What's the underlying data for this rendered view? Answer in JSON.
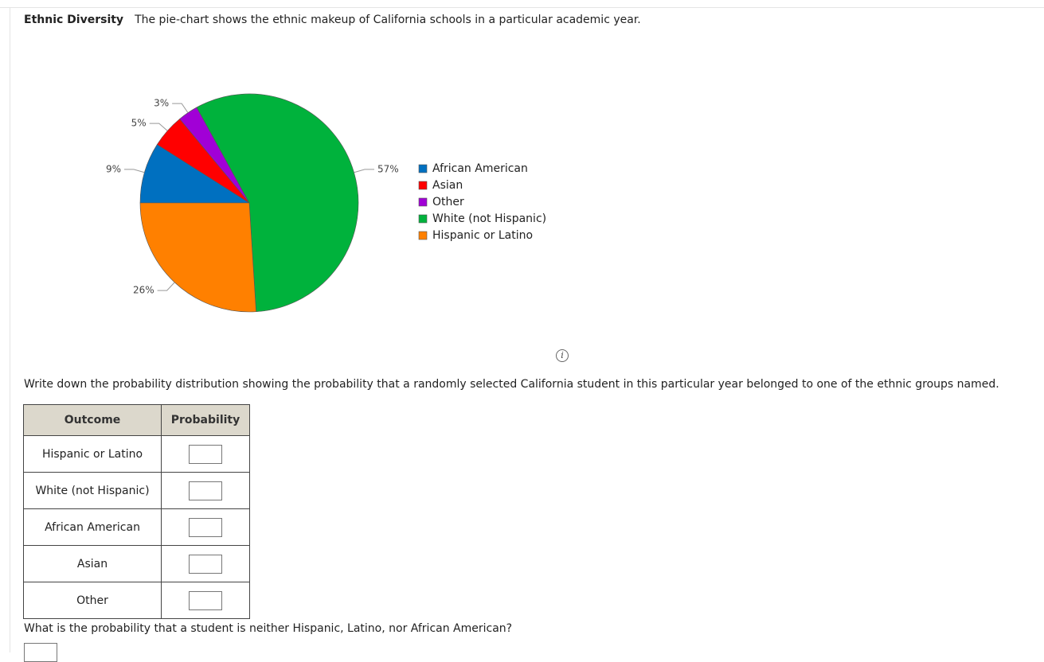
{
  "header": {
    "title": "Ethnic Diversity",
    "description": "The pie-chart shows the ethnic makeup of California schools in a particular academic year."
  },
  "chart_data": {
    "type": "pie",
    "categories": [
      "African American",
      "Asian",
      "Other",
      "White (not Hispanic)",
      "Hispanic or Latino"
    ],
    "values": [
      9,
      5,
      3,
      57,
      26
    ],
    "value_labels": [
      "9%",
      "5%",
      "3%",
      "57%",
      "26%"
    ],
    "colors": [
      "#0070c0",
      "#ff0000",
      "#a100d6",
      "#00b23c",
      "#ff8000"
    ]
  },
  "question1": "Write down the probability distribution showing the probability that a randomly selected California student in this particular year belonged to one of the ethnic groups named.",
  "table": {
    "header": [
      "Outcome",
      "Probability"
    ],
    "rows": [
      "Hispanic or Latino",
      "White (not Hispanic)",
      "African American",
      "Asian",
      "Other"
    ]
  },
  "question2": "What is the probability that a student is neither Hispanic, Latino, nor African American?"
}
